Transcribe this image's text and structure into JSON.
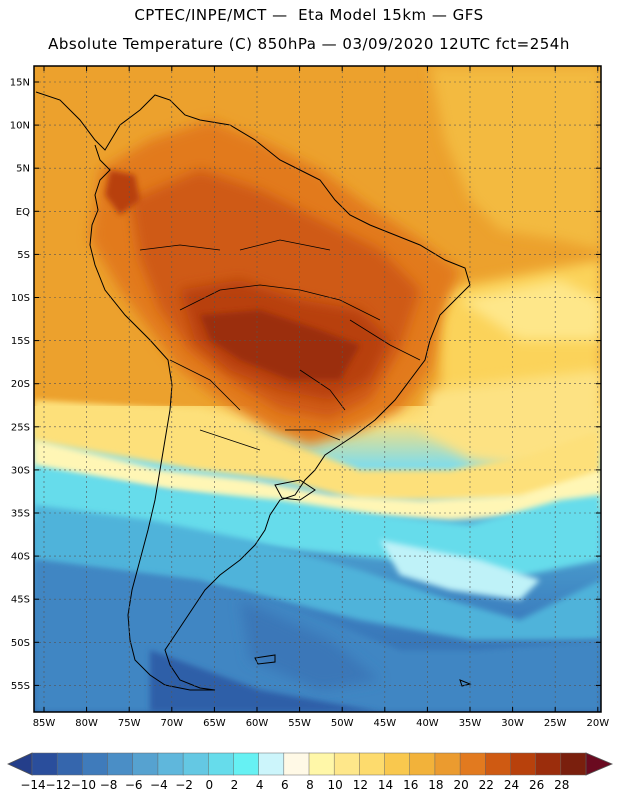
{
  "header": {
    "line1": "CPTEC/INPE/MCT —  Eta Model 15km — GFS",
    "line2": "Absolute Temperature (C) 850hPa — 03/09/2020 12UTC fct=254h"
  },
  "axes": {
    "lat_labels": [
      "15N",
      "10N",
      "5N",
      "EQ",
      "5S",
      "10S",
      "15S",
      "20S",
      "25S",
      "30S",
      "35S",
      "40S",
      "45S",
      "50S",
      "55S"
    ],
    "lon_labels": [
      "85W",
      "80W",
      "75W",
      "70W",
      "65W",
      "60W",
      "55W",
      "50W",
      "45W",
      "40W",
      "35W",
      "30W",
      "25W",
      "20W"
    ]
  },
  "colorbar": {
    "labels": [
      "-14",
      "-12",
      "-10",
      "-8",
      "-6",
      "-4",
      "-2",
      "0",
      "2",
      "4",
      "6",
      "8",
      "10",
      "12",
      "14",
      "16",
      "18",
      "20",
      "22",
      "24",
      "26",
      "28"
    ],
    "colors": [
      "#2a4e9c",
      "#3566ad",
      "#3f7bbb",
      "#4a8ec6",
      "#56a2d0",
      "#5fb7dc",
      "#64c8e3",
      "#66dceb",
      "#66f1f3",
      "#ccf5fb",
      "#fff9e6",
      "#fff7a8",
      "#fee78a",
      "#fddb6d",
      "#f9c84e",
      "#f2b23a",
      "#eb9b2f",
      "#e27a1f",
      "#cf5a12",
      "#b8410c",
      "#9b2d0c",
      "#7a1f0d"
    ],
    "low_color": "#243e8a",
    "high_color": "#6a0a20"
  }
}
